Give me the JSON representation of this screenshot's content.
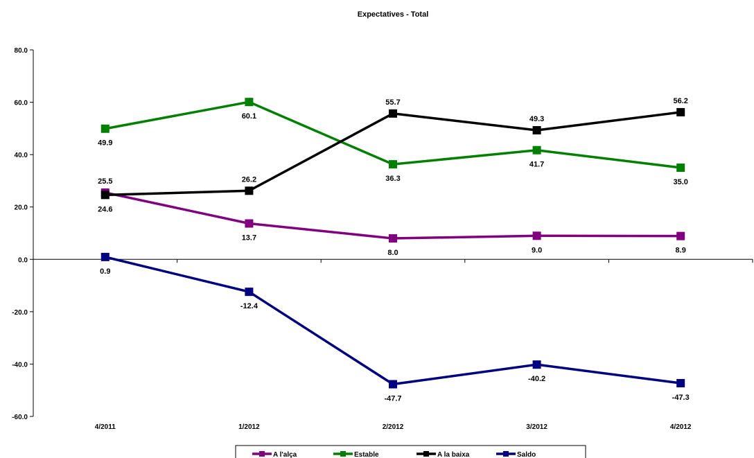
{
  "chart_data": {
    "type": "line",
    "title": "Expectatives - Total",
    "categories": [
      "4/2011",
      "1/2012",
      "2/2012",
      "3/2012",
      "4/2012"
    ],
    "ylim": [
      -60,
      80
    ],
    "yticks": [
      "80.0",
      "60.0",
      "40.0",
      "20.0",
      "0.0",
      "-20.0",
      "-40.0",
      "-60.0"
    ],
    "ytick_values": [
      80,
      60,
      40,
      20,
      0,
      -20,
      -40,
      -60
    ],
    "grid": false,
    "legend_position": "bottom",
    "series": [
      {
        "name": "A l'alça",
        "color": "#800080",
        "values": [
          25.5,
          13.7,
          8.0,
          9.0,
          8.9
        ],
        "labels": [
          "25.5",
          "13.7",
          "8.0",
          "9.0",
          "8.9"
        ]
      },
      {
        "name": "Estable",
        "color": "#008000",
        "values": [
          49.9,
          60.1,
          36.3,
          41.7,
          35.0
        ],
        "labels": [
          "49.9",
          "60.1",
          "36.3",
          "41.7",
          "35.0"
        ]
      },
      {
        "name": "A la baixa",
        "color": "#000000",
        "values": [
          24.6,
          26.2,
          55.7,
          49.3,
          56.2
        ],
        "labels": [
          "24.6",
          "26.2",
          "55.7",
          "49.3",
          "56.2"
        ]
      },
      {
        "name": "Saldo",
        "color": "#000080",
        "values": [
          0.9,
          -12.4,
          -47.7,
          -40.2,
          -47.3
        ],
        "labels": [
          "0.9",
          "-12.4",
          "-47.7",
          "-40.2",
          "-47.3"
        ]
      }
    ]
  }
}
